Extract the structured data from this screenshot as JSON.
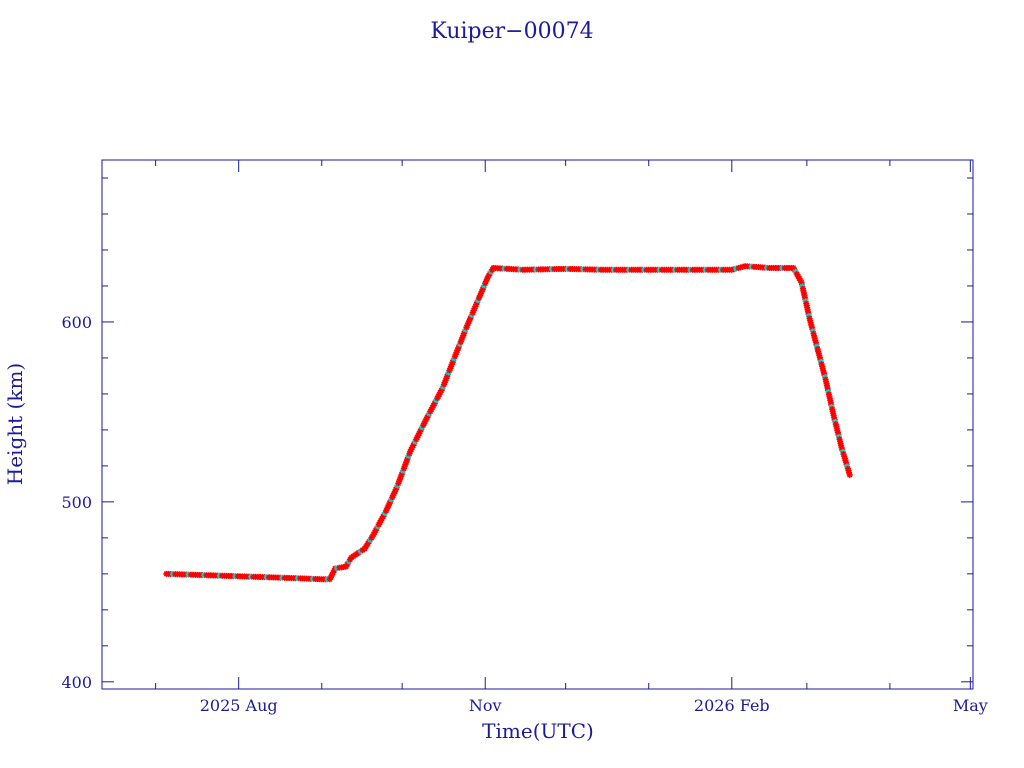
{
  "chart_data": {
    "type": "scatter",
    "title": "Kuiper−00074",
    "xlabel": "Time(UTC)",
    "ylabel": "Height (km)",
    "xlim": [
      "2025-06-11",
      "2026-05-02"
    ],
    "ylim": [
      396,
      690
    ],
    "x_ticks": [
      {
        "date": "2025-08-01",
        "label": "2025 Aug"
      },
      {
        "date": "2025-11-01",
        "label": "Nov"
      },
      {
        "date": "2026-02-01",
        "label": "2026 Feb"
      },
      {
        "date": "2026-05-01",
        "label": "May"
      }
    ],
    "y_ticks": [
      400,
      500,
      600
    ],
    "grid": false,
    "colors": {
      "axis": "#1a1a9a",
      "marker": "#ff0000",
      "marker_alt": "#00d8d8"
    },
    "series": [
      {
        "marker": "star",
        "color": "#ff0000",
        "points": [
          [
            "2025-07-05",
            460
          ],
          [
            "2025-07-15",
            459.5
          ],
          [
            "2025-07-25",
            459
          ],
          [
            "2025-08-04",
            458.5
          ],
          [
            "2025-08-14",
            458
          ],
          [
            "2025-08-24",
            457.5
          ],
          [
            "2025-09-01",
            457
          ],
          [
            "2025-09-04",
            457
          ],
          [
            "2025-09-06",
            463
          ],
          [
            "2025-09-10",
            464
          ],
          [
            "2025-09-12",
            469
          ],
          [
            "2025-09-17",
            474
          ],
          [
            "2025-09-20",
            481
          ],
          [
            "2025-09-25",
            495
          ],
          [
            "2025-09-29",
            508
          ],
          [
            "2025-10-04",
            528
          ],
          [
            "2025-10-10",
            546
          ],
          [
            "2025-10-16",
            563
          ],
          [
            "2025-10-21",
            582
          ],
          [
            "2025-10-25",
            597
          ],
          [
            "2025-10-29",
            611
          ],
          [
            "2025-11-02",
            625
          ],
          [
            "2025-11-04",
            630
          ],
          [
            "2025-11-15",
            629
          ],
          [
            "2025-12-01",
            629.5
          ],
          [
            "2025-12-15",
            629
          ],
          [
            "2026-01-01",
            629
          ],
          [
            "2026-01-15",
            629
          ],
          [
            "2026-02-01",
            629
          ],
          [
            "2026-02-06",
            631
          ],
          [
            "2026-02-15",
            630
          ],
          [
            "2026-02-24",
            630
          ],
          [
            "2026-02-27",
            622
          ],
          [
            "2026-03-02",
            602
          ],
          [
            "2026-03-05",
            585
          ],
          [
            "2026-03-08",
            568
          ],
          [
            "2026-03-11",
            548
          ],
          [
            "2026-03-14",
            530
          ],
          [
            "2026-03-17",
            515
          ]
        ]
      }
    ]
  }
}
